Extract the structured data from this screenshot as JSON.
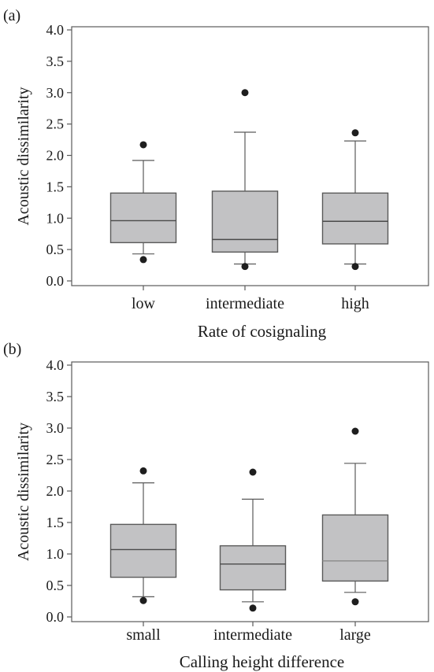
{
  "chart_data": [
    {
      "panel_label": "(a)",
      "type": "box",
      "xlabel": "Rate of cosignaling",
      "ylabel": "Acoustic dissimilarity",
      "ylim": [
        0.0,
        4.0
      ],
      "yticks": [
        "0.0",
        "0.5",
        "1.0",
        "1.5",
        "2.0",
        "2.5",
        "3.0",
        "3.5",
        "4.0"
      ],
      "categories": [
        "low",
        "intermediate",
        "high"
      ],
      "boxes": [
        {
          "category": "low",
          "whisker_low": 0.43,
          "q1": 0.61,
          "median": 0.96,
          "q3": 1.4,
          "whisker_high": 1.92,
          "outliers": [
            0.34,
            2.17
          ]
        },
        {
          "category": "intermediate",
          "whisker_low": 0.27,
          "q1": 0.46,
          "median": 0.66,
          "q3": 1.43,
          "whisker_high": 2.37,
          "outliers": [
            0.23,
            3.0
          ]
        },
        {
          "category": "high",
          "whisker_low": 0.27,
          "q1": 0.59,
          "median": 0.95,
          "q3": 1.4,
          "whisker_high": 2.23,
          "outliers": [
            0.23,
            2.36
          ]
        }
      ]
    },
    {
      "panel_label": "(b)",
      "type": "box",
      "xlabel": "Calling height difference",
      "ylabel": "Acoustic dissimilarity",
      "ylim": [
        0.0,
        4.0
      ],
      "yticks": [
        "0.0",
        "0.5",
        "1.0",
        "1.5",
        "2.0",
        "2.5",
        "3.0",
        "3.5",
        "4.0"
      ],
      "categories": [
        "small",
        "intermediate",
        "large"
      ],
      "boxes": [
        {
          "category": "small",
          "whisker_low": 0.32,
          "q1": 0.63,
          "median": 1.07,
          "q3": 1.47,
          "whisker_high": 2.13,
          "outliers": [
            0.26,
            2.32
          ]
        },
        {
          "category": "intermediate",
          "whisker_low": 0.24,
          "q1": 0.43,
          "median": 0.84,
          "q3": 1.13,
          "whisker_high": 1.87,
          "outliers": [
            0.14,
            2.3
          ]
        },
        {
          "category": "large",
          "whisker_low": 0.39,
          "q1": 0.57,
          "median": 0.89,
          "q3": 1.62,
          "whisker_high": 2.44,
          "outliers": [
            0.24,
            2.95
          ]
        }
      ]
    }
  ],
  "colors": {
    "box_fill": "#c2c2c4",
    "box_stroke": "#5a5a5a",
    "median_line": "#4a4a4a",
    "outlier_dot": "#1e1e1e",
    "axis": "#5a5a5a",
    "text": "#1a1a1a"
  }
}
